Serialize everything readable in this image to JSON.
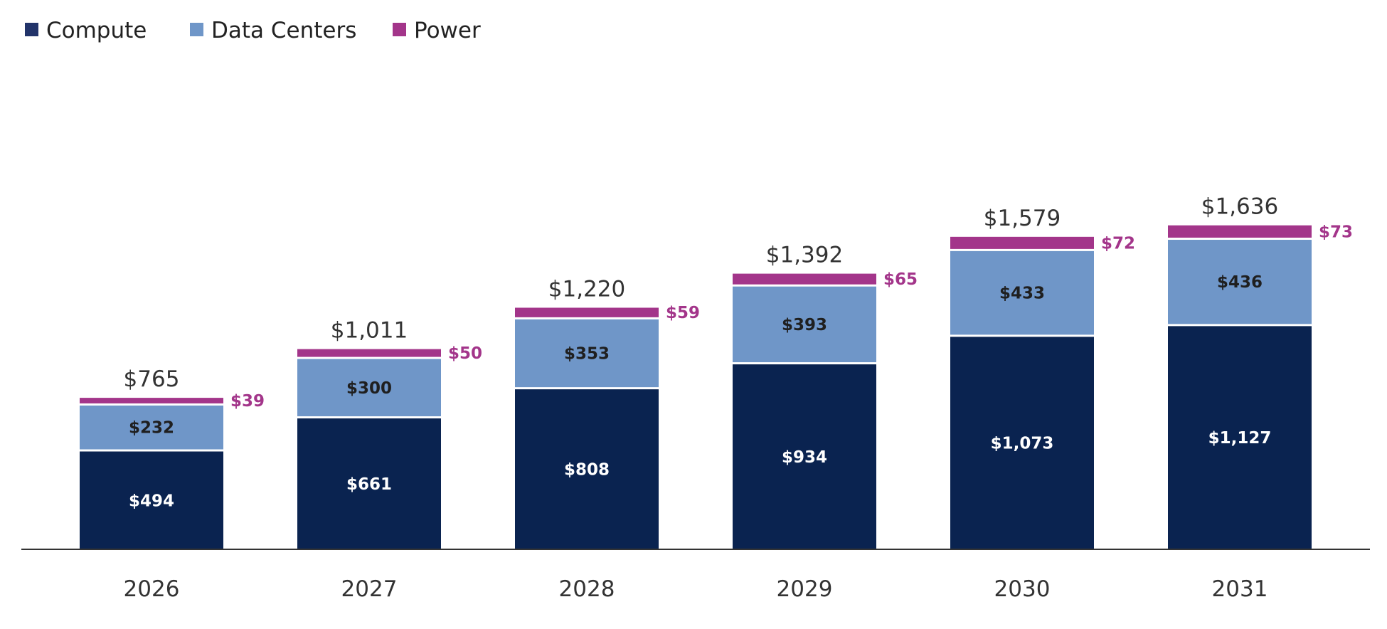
{
  "chart_data": {
    "type": "bar",
    "stacked": true,
    "categories": [
      "2026",
      "2027",
      "2028",
      "2029",
      "2030",
      "2031"
    ],
    "series": [
      {
        "name": "Compute",
        "values": [
          494,
          661,
          808,
          934,
          1073,
          1127
        ],
        "labels": [
          "$494",
          "$661",
          "$808",
          "$934",
          "$1,073",
          "$1,127"
        ],
        "color": "#0A2350",
        "label_color": "#ffffff"
      },
      {
        "name": "Data Centers",
        "values": [
          232,
          300,
          353,
          393,
          433,
          436
        ],
        "labels": [
          "$232",
          "$300",
          "$353",
          "$393",
          "$433",
          "$436"
        ],
        "color": "#6F96C8",
        "label_color": "#1f1f1f"
      },
      {
        "name": "Power",
        "values": [
          39,
          50,
          59,
          65,
          72,
          73
        ],
        "labels": [
          "$39",
          "$50",
          "$59",
          "$65",
          "$72",
          "$73"
        ],
        "color": "#A3358A",
        "label_color": "#A3358A"
      }
    ],
    "totals": [
      765,
      1011,
      1220,
      1392,
      1579,
      1636
    ],
    "total_labels": [
      "$765",
      "$1,011",
      "$1,220",
      "$1,392",
      "$1,579",
      "$1,636"
    ],
    "ylim": [
      0,
      1700
    ],
    "grid": false,
    "legend_position": "top-left",
    "legend_swatch_colors": [
      "#22346A",
      "#6F96C8",
      "#A3358A"
    ],
    "axis_color": "#333333"
  }
}
